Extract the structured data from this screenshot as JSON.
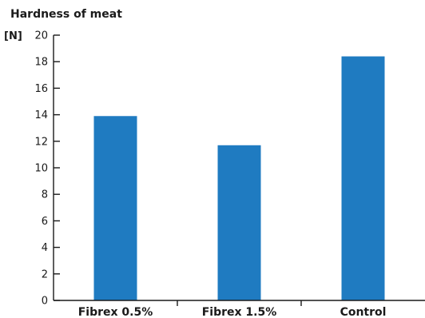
{
  "chart_data": {
    "type": "bar",
    "title": "Hardness of meat",
    "ylabel": "[N]",
    "xlabel": "",
    "categories": [
      "Fibrex 0.5%",
      "Fibrex 1.5%",
      "Control"
    ],
    "values": [
      13.9,
      11.7,
      18.4
    ],
    "ylim": [
      0,
      20
    ],
    "yticks": [
      0,
      2,
      4,
      6,
      8,
      10,
      12,
      14,
      16,
      18,
      20
    ],
    "bar_color": "#1f7bc1",
    "grid": false,
    "legend": "none"
  }
}
